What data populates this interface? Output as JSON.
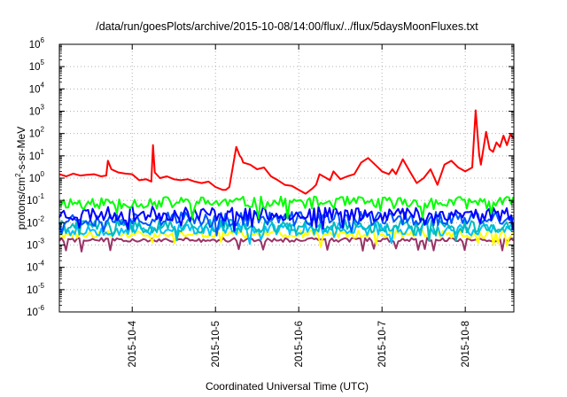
{
  "chart_data": {
    "type": "line",
    "title": "/data/run/goesPlots/archive/2015-10-08/14:00/flux/../flux/5daysMoonFluxes.txt",
    "xlabel": "Coordinated Universal Time (UTC)",
    "ylabel": "protons/cm2-s-sr-MeV",
    "ylabel_parts": {
      "pre": "protons/cm",
      "sup": "2",
      "post": "-s-sr-MeV"
    },
    "yscale": "log",
    "ylim": [
      1e-06,
      1000000.0
    ],
    "y_ticks": [
      {
        "value": 1e-06,
        "base": "10",
        "exp": "-6"
      },
      {
        "value": 1e-05,
        "base": "10",
        "exp": "-5"
      },
      {
        "value": 0.0001,
        "base": "10",
        "exp": "-4"
      },
      {
        "value": 0.001,
        "base": "10",
        "exp": "-3"
      },
      {
        "value": 0.01,
        "base": "10",
        "exp": "-2"
      },
      {
        "value": 0.1,
        "base": "10",
        "exp": "-1"
      },
      {
        "value": 1,
        "base": "10",
        "exp": "0"
      },
      {
        "value": 10,
        "base": "10",
        "exp": "1"
      },
      {
        "value": 100,
        "base": "10",
        "exp": "2"
      },
      {
        "value": 1000,
        "base": "10",
        "exp": "3"
      },
      {
        "value": 10000.0,
        "base": "10",
        "exp": "4"
      },
      {
        "value": 100000.0,
        "base": "10",
        "exp": "5"
      },
      {
        "value": 1000000.0,
        "base": "10",
        "exp": "6"
      }
    ],
    "xlim": [
      "2015-10-03T03:00",
      "2015-10-08T14:00"
    ],
    "x_ticks": [
      {
        "value": "2015-10-04T00:00",
        "label": "2015-10-4"
      },
      {
        "value": "2015-10-05T00:00",
        "label": "2015-10-5"
      },
      {
        "value": "2015-10-06T00:00",
        "label": "2015-10-6"
      },
      {
        "value": "2015-10-07T00:00",
        "label": "2015-10-7"
      },
      {
        "value": "2015-10-08T00:00",
        "label": "2015-10-8"
      }
    ],
    "grid": true,
    "series": [
      {
        "color": "#ff0000",
        "width": 2,
        "x": [
          "2015-10-03T03:00",
          "2015-10-03T05:00",
          "2015-10-03T07:00",
          "2015-10-03T09:00",
          "2015-10-03T11:00",
          "2015-10-03T13:00",
          "2015-10-03T15:00",
          "2015-10-03T16:30",
          "2015-10-03T17:00",
          "2015-10-03T18:00",
          "2015-10-03T20:00",
          "2015-10-03T22:00",
          "2015-10-04T00:00",
          "2015-10-04T02:00",
          "2015-10-04T04:00",
          "2015-10-04T05:30",
          "2015-10-04T06:00",
          "2015-10-04T06:30",
          "2015-10-04T08:00",
          "2015-10-04T10:00",
          "2015-10-04T12:00",
          "2015-10-04T14:00",
          "2015-10-04T16:00",
          "2015-10-04T18:00",
          "2015-10-04T20:00",
          "2015-10-04T22:00",
          "2015-10-05T00:00",
          "2015-10-05T02:00",
          "2015-10-05T03:00",
          "2015-10-05T04:00",
          "2015-10-05T06:00",
          "2015-10-05T07:00",
          "2015-10-05T07:30",
          "2015-10-05T08:00",
          "2015-10-05T10:00",
          "2015-10-05T12:00",
          "2015-10-05T14:00",
          "2015-10-05T16:00",
          "2015-10-05T18:00",
          "2015-10-05T20:00",
          "2015-10-05T22:00",
          "2015-10-06T00:00",
          "2015-10-06T02:00",
          "2015-10-06T04:00",
          "2015-10-06T05:00",
          "2015-10-06T06:00",
          "2015-10-06T08:00",
          "2015-10-06T09:00",
          "2015-10-06T10:00",
          "2015-10-06T12:00",
          "2015-10-06T14:00",
          "2015-10-06T16:00",
          "2015-10-06T18:00",
          "2015-10-06T20:00",
          "2015-10-06T22:00",
          "2015-10-07T00:00",
          "2015-10-07T02:00",
          "2015-10-07T03:00",
          "2015-10-07T04:00",
          "2015-10-07T06:00",
          "2015-10-07T08:00",
          "2015-10-07T10:00",
          "2015-10-07T12:00",
          "2015-10-07T14:00",
          "2015-10-07T16:00",
          "2015-10-07T18:00",
          "2015-10-07T20:00",
          "2015-10-07T22:00",
          "2015-10-08T00:00",
          "2015-10-08T02:00",
          "2015-10-08T03:00",
          "2015-10-08T04:00",
          "2015-10-08T04:30",
          "2015-10-08T06:00",
          "2015-10-08T07:00",
          "2015-10-08T08:00",
          "2015-10-08T09:00",
          "2015-10-08T10:00",
          "2015-10-08T11:00",
          "2015-10-08T12:00",
          "2015-10-08T13:00",
          "2015-10-08T14:00"
        ],
        "y": [
          1.5,
          1.2,
          1.6,
          1.3,
          1.4,
          1.5,
          1.2,
          1.3,
          6.0,
          2.5,
          1.8,
          1.6,
          1.5,
          0.8,
          0.9,
          0.7,
          30,
          1.8,
          1.0,
          1.2,
          0.9,
          0.8,
          0.9,
          0.7,
          0.6,
          0.7,
          0.4,
          0.3,
          0.3,
          0.4,
          25,
          10,
          8,
          5,
          4,
          2.5,
          3,
          1.2,
          0.8,
          0.5,
          0.45,
          0.3,
          0.2,
          0.35,
          0.5,
          1.5,
          1.0,
          0.8,
          2.0,
          0.9,
          1.2,
          1.5,
          5.0,
          8.0,
          4.0,
          2.0,
          1.5,
          2.5,
          1.5,
          7.0,
          2.0,
          0.6,
          1.0,
          2.5,
          0.5,
          4.0,
          6.0,
          3.0,
          2.0,
          3.0,
          1100,
          12,
          4,
          120,
          20,
          15,
          40,
          25,
          80,
          30,
          90,
          60
        ]
      },
      {
        "color": "#00ff00",
        "width": 2,
        "base": 0.08,
        "amp": 0.55,
        "step": 2.5,
        "seed": 11
      },
      {
        "color": "#0000ff",
        "width": 2,
        "base": 0.025,
        "amp": 0.65,
        "step": 2.5,
        "seed": 23
      },
      {
        "color": "#0055ff",
        "width": 2,
        "base": 0.015,
        "amp": 0.65,
        "step": 2.5,
        "seed": 37
      },
      {
        "color": "#00bbbb",
        "width": 2,
        "base": 0.007,
        "amp": 0.6,
        "step": 2.5,
        "seed": 41
      },
      {
        "color": "#00bfff",
        "width": 2,
        "base": 0.005,
        "amp": 0.55,
        "step": 2.5,
        "seed": 53
      },
      {
        "color": "#ffff00",
        "width": 2,
        "base": 0.003,
        "amp": 0.35,
        "step": 2.5,
        "seed": 61
      },
      {
        "color": "#993366",
        "width": 2,
        "base": 0.0017,
        "amp": 0.18,
        "step": 2.5,
        "seed": 79
      }
    ]
  }
}
